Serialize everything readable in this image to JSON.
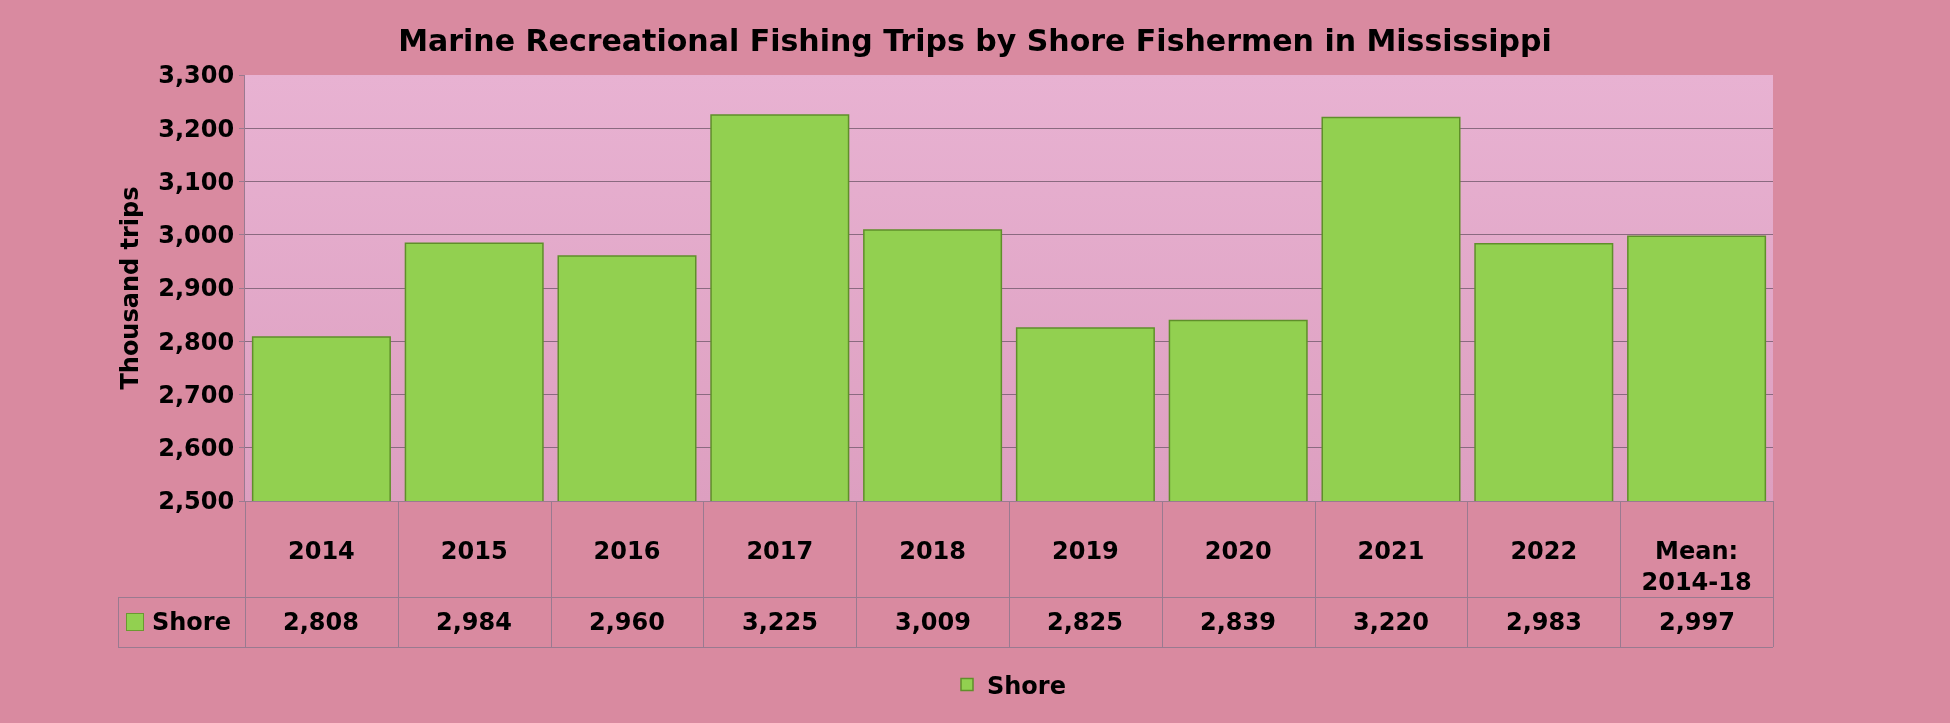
{
  "chart_data": {
    "type": "bar",
    "title": "Marine Recreational Fishing Trips by Shore Fishermen in Mississippi",
    "ylabel": "Thousand trips",
    "categories": [
      "2014",
      "2015",
      "2016",
      "2017",
      "2018",
      "2019",
      "2020",
      "2021",
      "2022",
      "Mean: 2014-18"
    ],
    "series": [
      {
        "name": "Shore",
        "color": "#92d050",
        "values": [
          2808,
          2984,
          2960,
          3225,
          3009,
          2825,
          2839,
          3220,
          2983,
          2997
        ],
        "value_labels": [
          "2,808",
          "2,984",
          "2,960",
          "3,225",
          "3,009",
          "2,825",
          "2,839",
          "3,220",
          "2,983",
          "2,997"
        ]
      }
    ],
    "ylim": [
      2500,
      3300
    ],
    "yticks": [
      {
        "value": 2500,
        "label": "2,500"
      },
      {
        "value": 2600,
        "label": "2,600"
      },
      {
        "value": 2700,
        "label": "2,700"
      },
      {
        "value": 2800,
        "label": "2,800"
      },
      {
        "value": 2900,
        "label": "2,900"
      },
      {
        "value": 3000,
        "label": "3,000"
      },
      {
        "value": 3100,
        "label": "3,100"
      },
      {
        "value": 3200,
        "label": "3,200"
      },
      {
        "value": 3300,
        "label": "3,300"
      }
    ],
    "grid": "y",
    "legend": "bottom"
  }
}
